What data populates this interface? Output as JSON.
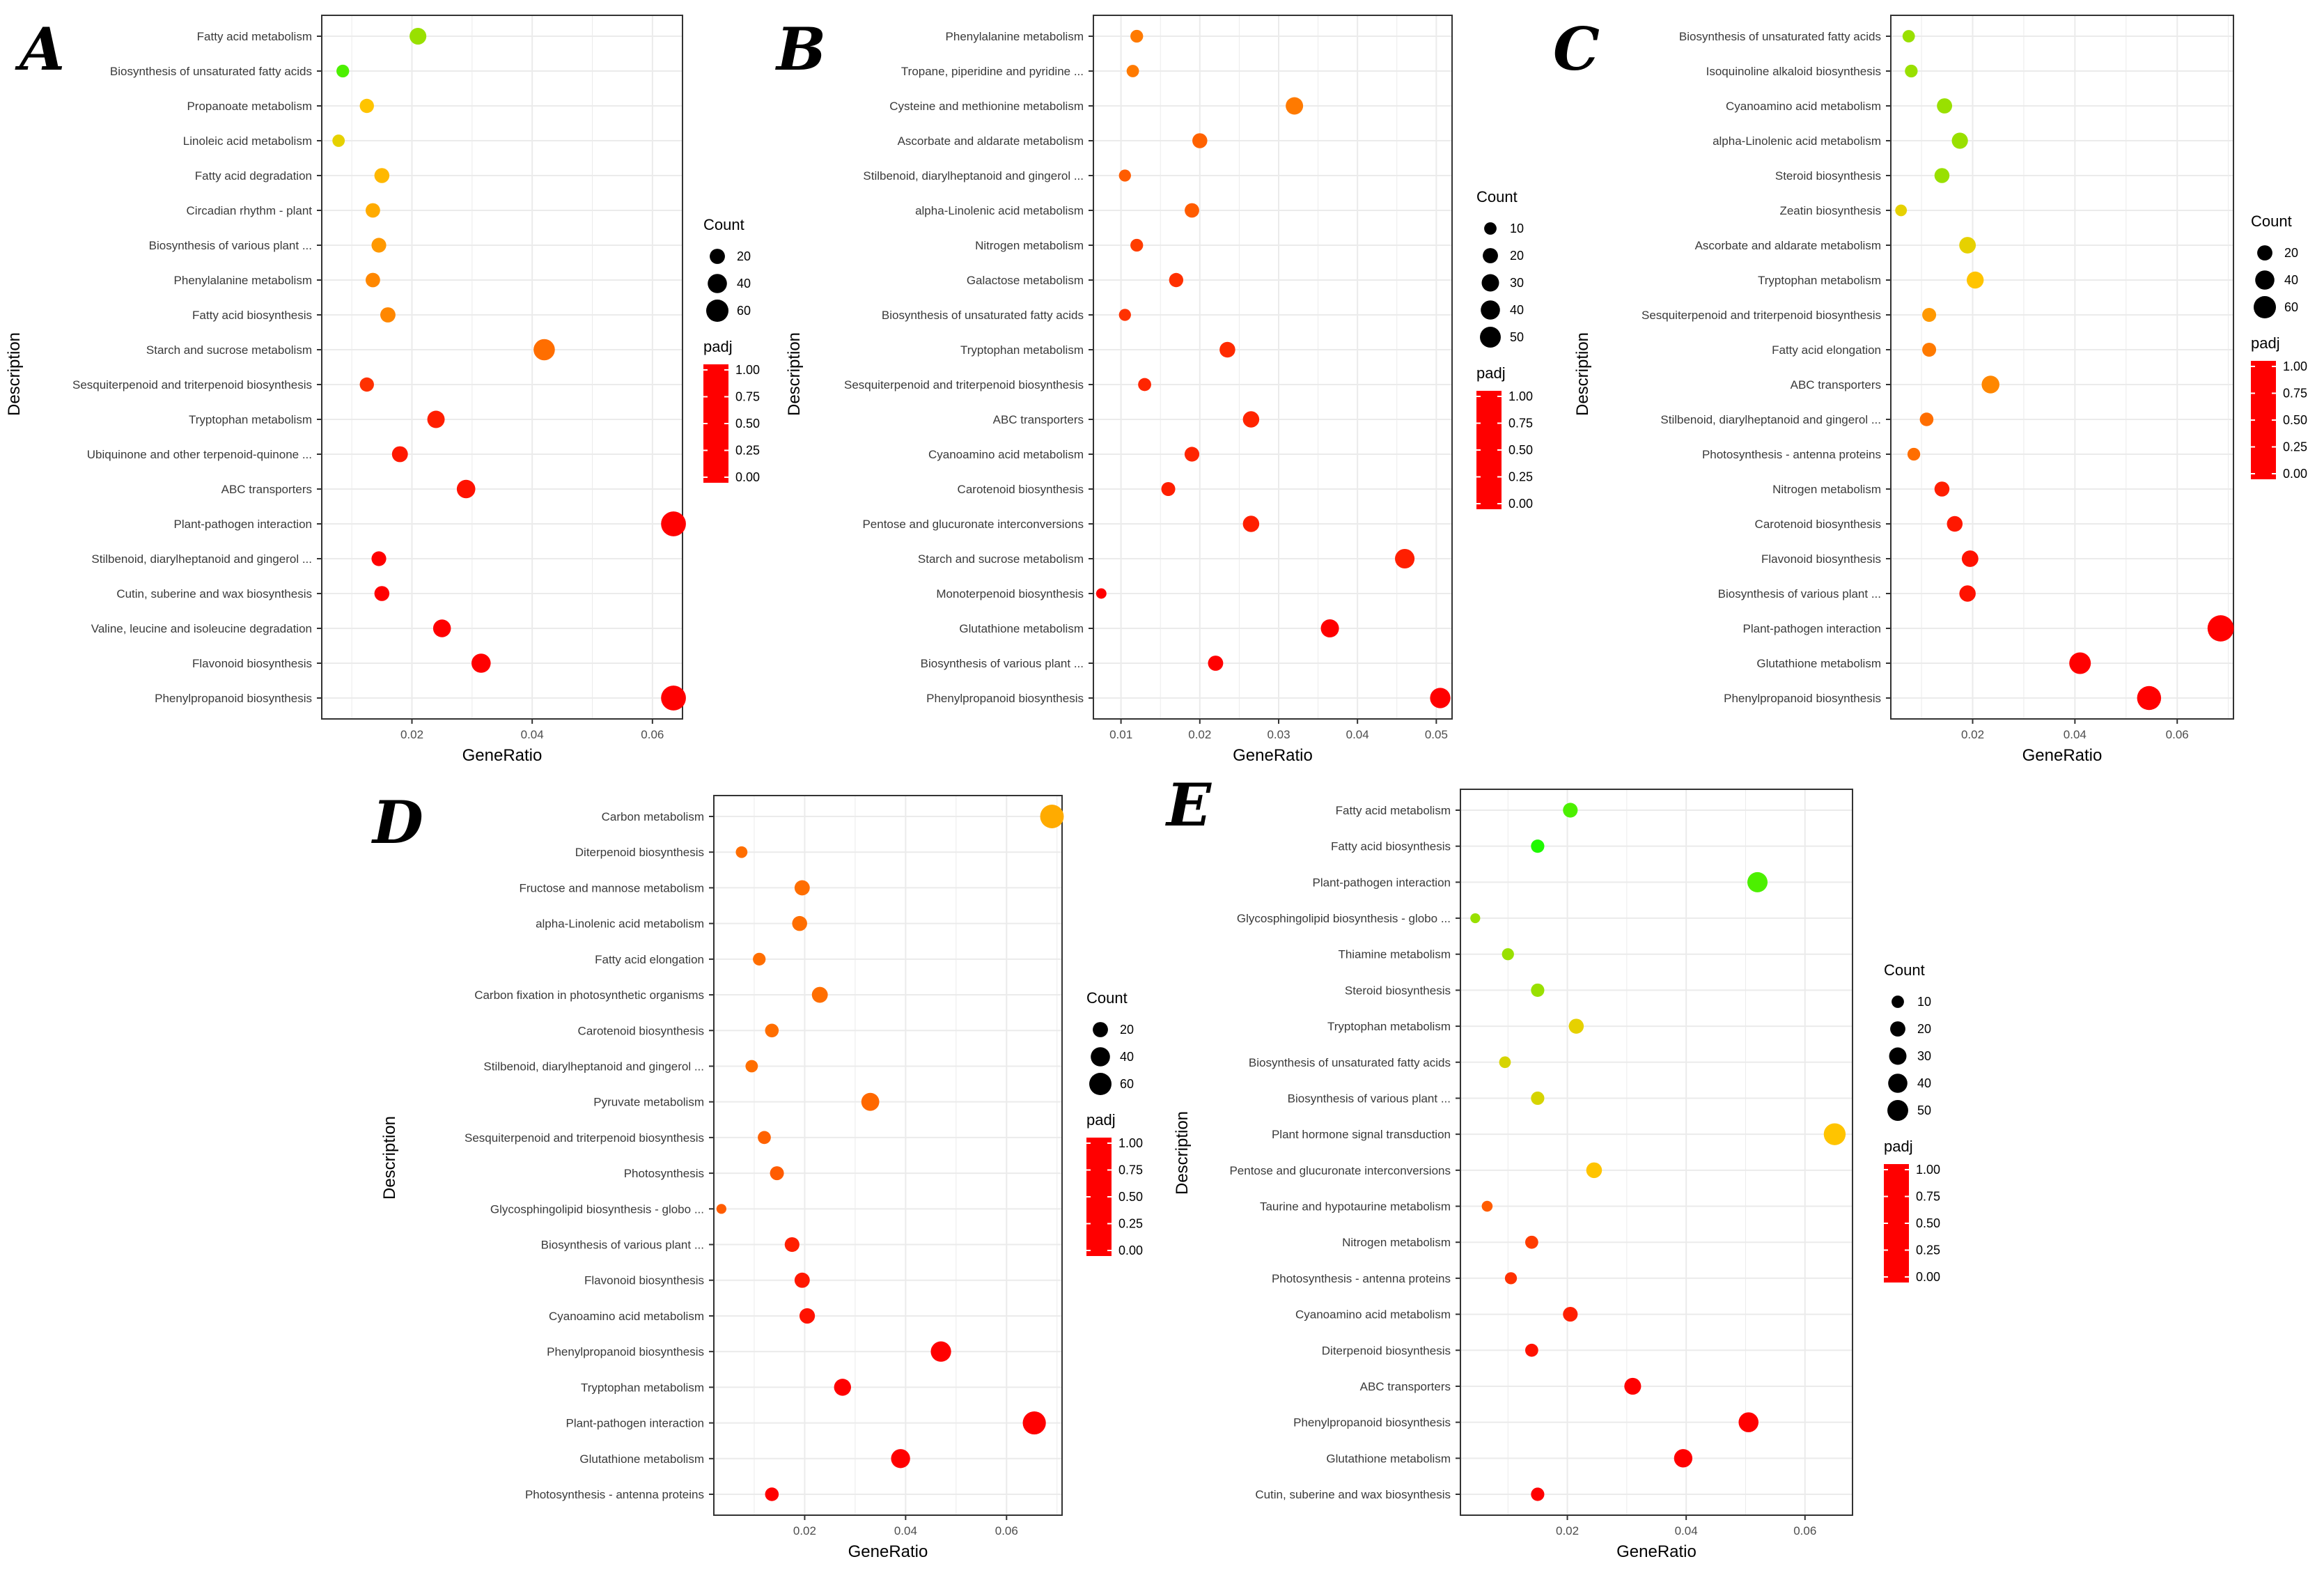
{
  "figure": {
    "colors": {
      "background": "#ffffff",
      "grid": "#ebebeb",
      "frame": "#333333",
      "padj_gradient": [
        "#ff0000",
        "#ff6600",
        "#ffcc00",
        "#00ff00",
        "#00ffff",
        "#0066ff",
        "#9900ff"
      ]
    },
    "chart_data": [
      {
        "panel": "A",
        "type": "scatter",
        "xlabel": "GeneRatio",
        "ylabel": "Description",
        "xlim": [
          0.005,
          0.065
        ],
        "xticks": [
          0.02,
          0.04,
          0.06
        ],
        "xtick_labels": [
          "0.02",
          "0.04",
          "0.06"
        ],
        "size_legend": {
          "title": "Count",
          "values": [
            20,
            40,
            60
          ],
          "labels": [
            "20",
            "40",
            "60"
          ]
        },
        "color_legend": {
          "title": "padj",
          "range": [
            0,
            1
          ],
          "labels": [
            "1.00",
            "0.75",
            "0.50",
            "0.25",
            "0.00"
          ]
        },
        "categories": [
          "Fatty acid metabolism",
          "Biosynthesis of unsaturated fatty acids",
          "Propanoate metabolism",
          "Linoleic acid metabolism",
          "Fatty acid degradation",
          "Circadian rhythm - plant",
          "Biosynthesis of various plant ...",
          "Phenylalanine metabolism",
          "Fatty acid biosynthesis",
          "Starch and sucrose metabolism",
          "Sesquiterpenoid and triterpenoid biosynthesis",
          "Tryptophan metabolism",
          "Ubiquinone and other terpenoid-quinone ...",
          "ABC transporters",
          "Plant-pathogen interaction",
          "Stilbenoid, diarylheptanoid and gingerol ...",
          "Cutin, suberine and wax biosynthesis",
          "Valine, leucine and isoleucine degradation",
          "Flavonoid biosynthesis",
          "Phenylpropanoid biosynthesis"
        ],
        "gene_ratio": [
          0.021,
          0.0085,
          0.0125,
          0.0078,
          0.015,
          0.0135,
          0.0145,
          0.0135,
          0.016,
          0.042,
          0.0125,
          0.024,
          0.018,
          0.029,
          0.0635,
          0.0145,
          0.015,
          0.025,
          0.0315,
          0.0635
        ],
        "count": [
          27,
          11,
          16,
          10,
          19,
          17,
          18,
          17,
          20,
          53,
          16,
          30,
          23,
          36,
          80,
          18,
          19,
          32,
          40,
          80
        ],
        "padj": [
          0.4,
          0.45,
          0.32,
          0.35,
          0.3,
          0.28,
          0.25,
          0.22,
          0.22,
          0.18,
          0.08,
          0.05,
          0.04,
          0.03,
          0.0,
          0.0,
          0.0,
          0.0,
          0.0,
          0.0
        ]
      },
      {
        "panel": "B",
        "type": "scatter",
        "xlabel": "GeneRatio",
        "ylabel": "Description",
        "xlim": [
          0.0065,
          0.052
        ],
        "xticks": [
          0.01,
          0.02,
          0.03,
          0.04,
          0.05
        ],
        "xtick_labels": [
          "0.01",
          "0.02",
          "0.03",
          "0.04",
          "0.05"
        ],
        "size_legend": {
          "title": "Count",
          "values": [
            10,
            20,
            30,
            40,
            50
          ],
          "labels": [
            "10",
            "20",
            "30",
            "40",
            "50"
          ]
        },
        "color_legend": {
          "title": "padj",
          "range": [
            0,
            1
          ],
          "labels": [
            "1.00",
            "0.75",
            "0.50",
            "0.25",
            "0.00"
          ]
        },
        "categories": [
          "Phenylalanine metabolism",
          "Tropane, piperidine and pyridine ...",
          "Cysteine and methionine metabolism",
          "Ascorbate and aldarate metabolism",
          "Stilbenoid, diarylheptanoid and gingerol ...",
          "alpha-Linolenic acid metabolism",
          "Nitrogen metabolism",
          "Galactose metabolism",
          "Biosynthesis of unsaturated fatty acids",
          "Tryptophan metabolism",
          "Sesquiterpenoid and triterpenoid biosynthesis",
          "ABC transporters",
          "Cyanoamino acid metabolism",
          "Carotenoid biosynthesis",
          "Pentose and glucuronate interconversions",
          "Starch and sucrose metabolism",
          "Monoterpenoid biosynthesis",
          "Glutathione metabolism",
          "Biosynthesis of various plant ...",
          "Phenylpropanoid biosynthesis"
        ],
        "gene_ratio": [
          0.012,
          0.0115,
          0.032,
          0.02,
          0.0105,
          0.019,
          0.012,
          0.017,
          0.0105,
          0.0235,
          0.013,
          0.0265,
          0.019,
          0.016,
          0.0265,
          0.046,
          0.0075,
          0.0365,
          0.022,
          0.0505
        ],
        "count": [
          11,
          10,
          30,
          19,
          9,
          17,
          11,
          16,
          9,
          22,
          12,
          25,
          18,
          15,
          25,
          42,
          5,
          34,
          20,
          47
        ],
        "padj": [
          0.2,
          0.2,
          0.2,
          0.16,
          0.15,
          0.15,
          0.1,
          0.08,
          0.08,
          0.07,
          0.06,
          0.06,
          0.06,
          0.05,
          0.05,
          0.05,
          0.0,
          0.0,
          0.0,
          0.0
        ]
      },
      {
        "panel": "C",
        "type": "scatter",
        "xlabel": "GeneRatio",
        "ylabel": "Description",
        "xlim": [
          0.004,
          0.071
        ],
        "xticks": [
          0.02,
          0.04,
          0.06
        ],
        "xtick_labels": [
          "0.02",
          "0.04",
          "0.06"
        ],
        "size_legend": {
          "title": "Count",
          "values": [
            20,
            40,
            60
          ],
          "labels": [
            "20",
            "40",
            "60"
          ]
        },
        "color_legend": {
          "title": "padj",
          "range": [
            0,
            1
          ],
          "labels": [
            "1.00",
            "0.75",
            "0.50",
            "0.25",
            "0.00"
          ]
        },
        "categories": [
          "Biosynthesis of unsaturated fatty acids",
          "Isoquinoline alkaloid biosynthesis",
          "Cyanoamino acid metabolism",
          "alpha-Linolenic acid metabolism",
          "Steroid biosynthesis",
          "Zeatin biosynthesis",
          "Ascorbate and aldarate metabolism",
          "Tryptophan metabolism",
          "Sesquiterpenoid and triterpenoid biosynthesis",
          "Fatty acid elongation",
          "ABC transporters",
          "Stilbenoid, diarylheptanoid and gingerol ...",
          "Photosynthesis - antenna proteins",
          "Nitrogen metabolism",
          "Carotenoid biosynthesis",
          "Flavonoid biosynthesis",
          "Biosynthesis of various plant ...",
          "Plant-pathogen interaction",
          "Glutathione metabolism",
          "Phenylpropanoid biosynthesis"
        ],
        "gene_ratio": [
          0.0075,
          0.008,
          0.0145,
          0.0175,
          0.014,
          0.006,
          0.019,
          0.0205,
          0.0115,
          0.0115,
          0.0235,
          0.011,
          0.0085,
          0.014,
          0.0165,
          0.0195,
          0.019,
          0.0685,
          0.041,
          0.0545
        ],
        "count": [
          10,
          11,
          20,
          24,
          19,
          8,
          26,
          28,
          15,
          15,
          32,
          14,
          11,
          19,
          22,
          26,
          25,
          92,
          55,
          73
        ],
        "padj": [
          0.4,
          0.4,
          0.4,
          0.4,
          0.4,
          0.35,
          0.35,
          0.32,
          0.25,
          0.2,
          0.22,
          0.18,
          0.18,
          0.05,
          0.04,
          0.03,
          0.03,
          0.0,
          0.0,
          0.0
        ]
      },
      {
        "panel": "D",
        "type": "scatter",
        "xlabel": "GeneRatio",
        "ylabel": "Description",
        "xlim": [
          0.002,
          0.071
        ],
        "xticks": [
          0.02,
          0.04,
          0.06
        ],
        "xtick_labels": [
          "0.02",
          "0.04",
          "0.06"
        ],
        "size_legend": {
          "title": "Count",
          "values": [
            20,
            40,
            60
          ],
          "labels": [
            "20",
            "40",
            "60"
          ]
        },
        "color_legend": {
          "title": "padj",
          "range": [
            0,
            1
          ],
          "labels": [
            "1.00",
            "0.75",
            "0.50",
            "0.25",
            "0.00"
          ]
        },
        "categories": [
          "Carbon metabolism",
          "Diterpenoid biosynthesis",
          "Fructose and mannose metabolism",
          "alpha-Linolenic acid metabolism",
          "Fatty acid elongation",
          "Carbon fixation in photosynthetic organisms",
          "Carotenoid biosynthesis",
          "Stilbenoid, diarylheptanoid and gingerol ...",
          "Pyruvate metabolism",
          "Sesquiterpenoid and triterpenoid biosynthesis",
          "Photosynthesis",
          "Glycosphingolipid biosynthesis - globo ...",
          "Biosynthesis of various plant ...",
          "Flavonoid biosynthesis",
          "Cyanoamino acid metabolism",
          "Phenylpropanoid biosynthesis",
          "Tryptophan metabolism",
          "Plant-pathogen interaction",
          "Glutathione metabolism",
          "Photosynthesis - antenna proteins"
        ],
        "gene_ratio": [
          0.069,
          0.0075,
          0.0195,
          0.019,
          0.011,
          0.023,
          0.0135,
          0.0095,
          0.033,
          0.012,
          0.0145,
          0.0035,
          0.0175,
          0.0195,
          0.0205,
          0.047,
          0.0275,
          0.0655,
          0.039,
          0.0135
        ],
        "count": [
          70,
          8,
          20,
          19,
          11,
          23,
          14,
          10,
          33,
          12,
          15,
          4,
          18,
          20,
          21,
          47,
          28,
          66,
          39,
          14
        ],
        "padj": [
          0.28,
          0.18,
          0.18,
          0.18,
          0.18,
          0.18,
          0.18,
          0.18,
          0.17,
          0.16,
          0.15,
          0.15,
          0.05,
          0.04,
          0.03,
          0.0,
          0.0,
          0.0,
          0.0,
          0.0
        ]
      },
      {
        "panel": "E",
        "type": "scatter",
        "xlabel": "GeneRatio",
        "ylabel": "Description",
        "xlim": [
          0.002,
          0.068
        ],
        "xticks": [
          0.02,
          0.04,
          0.06
        ],
        "xtick_labels": [
          "0.02",
          "0.04",
          "0.06"
        ],
        "size_legend": {
          "title": "Count",
          "values": [
            10,
            20,
            30,
            40,
            50
          ],
          "labels": [
            "10",
            "20",
            "30",
            "40",
            "50"
          ]
        },
        "color_legend": {
          "title": "padj",
          "range": [
            0,
            1
          ],
          "labels": [
            "1.00",
            "0.75",
            "0.50",
            "0.25",
            "0.00"
          ]
        },
        "categories": [
          "Fatty acid metabolism",
          "Fatty acid biosynthesis",
          "Plant-pathogen interaction",
          "Glycosphingolipid biosynthesis - globo ...",
          "Thiamine metabolism",
          "Steroid biosynthesis",
          "Tryptophan metabolism",
          "Biosynthesis of unsaturated fatty acids",
          "Biosynthesis of various plant ...",
          "Plant hormone signal transduction",
          "Pentose and glucuronate interconversions",
          "Taurine and hypotaurine metabolism",
          "Nitrogen metabolism",
          "Photosynthesis - antenna proteins",
          "Cyanoamino acid metabolism",
          "Diterpenoid biosynthesis",
          "ABC transporters",
          "Phenylpropanoid biosynthesis",
          "Glutathione metabolism",
          "Cutin, suberine and wax biosynthesis"
        ],
        "gene_ratio": [
          0.0205,
          0.015,
          0.052,
          0.0045,
          0.01,
          0.015,
          0.0215,
          0.0095,
          0.015,
          0.065,
          0.0245,
          0.0065,
          0.014,
          0.0105,
          0.0205,
          0.014,
          0.031,
          0.0505,
          0.0395,
          0.015
        ],
        "count": [
          18,
          13,
          46,
          4,
          9,
          13,
          19,
          8,
          13,
          57,
          22,
          6,
          12,
          9,
          18,
          12,
          27,
          44,
          35,
          13
        ],
        "padj": [
          0.45,
          0.48,
          0.45,
          0.4,
          0.4,
          0.4,
          0.35,
          0.36,
          0.36,
          0.32,
          0.32,
          0.15,
          0.1,
          0.08,
          0.05,
          0.03,
          0.0,
          0.0,
          0.0,
          0.0
        ]
      }
    ]
  }
}
